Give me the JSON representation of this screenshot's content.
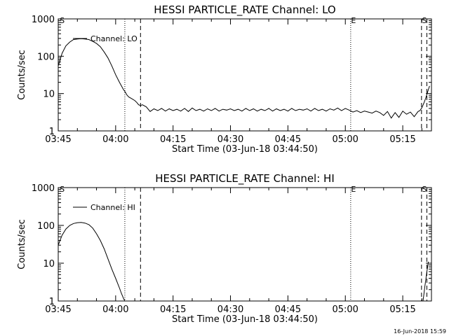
{
  "timestamp": "16-Jun-2018 15:59",
  "chart_data": [
    {
      "type": "line",
      "title": "HESSI PARTICLE_RATE Channel: LO",
      "xlabel": "Start Time (03-Jun-18 03:44:50)",
      "ylabel": "Counts/sec",
      "yscale": "log",
      "xlim_minutes": [
        0,
        97.5
      ],
      "ylim": [
        1,
        1000
      ],
      "x_ticks": [
        "03:45",
        "04:00",
        "04:15",
        "04:30",
        "04:45",
        "05:00",
        "05:15"
      ],
      "x_tick_minutes": [
        0,
        15,
        30,
        45,
        60,
        75,
        90
      ],
      "y_ticks": [
        "1",
        "10",
        "100",
        "1000"
      ],
      "y_tick_values": [
        1,
        10,
        100,
        1000
      ],
      "legend": {
        "label": "Channel: LO",
        "position": "top-left"
      },
      "markers": [
        {
          "minute": 0.3,
          "style": "none",
          "label": "S"
        },
        {
          "minute": 17.4,
          "style": "dotted",
          "label": ""
        },
        {
          "minute": 21.5,
          "style": "dashed",
          "label": ""
        },
        {
          "minute": 76.4,
          "style": "dotted",
          "label": "E"
        },
        {
          "minute": 94.9,
          "style": "dashed",
          "label": "S"
        },
        {
          "minute": 96.3,
          "style": "dashed",
          "label": ""
        }
      ],
      "series": [
        {
          "x": [
            0,
            1,
            2,
            3,
            4,
            5,
            6,
            7,
            8,
            9,
            10,
            11,
            12,
            13,
            14,
            15,
            16,
            17,
            17.5,
            18,
            18.5,
            19,
            20,
            20.5,
            21,
            21.5,
            22,
            23,
            24,
            25,
            26,
            27,
            28,
            29,
            30,
            31,
            32,
            33,
            34,
            35,
            36,
            37,
            38,
            39,
            40,
            41,
            42,
            43,
            44,
            45,
            46,
            47,
            48,
            49,
            50,
            51,
            52,
            53,
            54,
            55,
            56,
            57,
            58,
            59,
            60,
            61,
            62,
            63,
            64,
            65,
            66,
            67,
            68,
            69,
            70,
            71,
            72,
            73,
            74,
            75,
            76,
            77,
            78,
            79,
            80,
            81,
            82,
            83,
            84,
            85,
            86,
            87,
            88,
            89,
            90,
            91,
            92,
            93,
            94,
            94.5,
            95,
            95.5,
            96,
            96.5,
            97
          ],
          "y": [
            55,
            120,
            190,
            240,
            280,
            290,
            295,
            290,
            280,
            250,
            220,
            180,
            130,
            90,
            55,
            32,
            20,
            13,
            11,
            9,
            8,
            7.5,
            6.5,
            5.8,
            5,
            4.8,
            5,
            4.4,
            3.3,
            3.9,
            3.5,
            4,
            3.4,
            3.9,
            3.5,
            3.8,
            3.4,
            4,
            3.3,
            4.1,
            3.5,
            3.8,
            3.4,
            3.9,
            3.5,
            4,
            3.4,
            3.8,
            3.6,
            3.9,
            3.5,
            3.8,
            3.4,
            4,
            3.5,
            3.9,
            3.4,
            3.8,
            3.5,
            4,
            3.4,
            3.9,
            3.5,
            3.8,
            3.4,
            4,
            3.5,
            3.8,
            3.6,
            3.9,
            3.4,
            4,
            3.5,
            3.8,
            3.4,
            3.9,
            3.6,
            4.1,
            3.5,
            4,
            3.6,
            3.2,
            3.5,
            3.1,
            3.4,
            3.2,
            3.0,
            3.4,
            3.1,
            2.6,
            3.3,
            2.2,
            3.1,
            2.3,
            3.4,
            2.8,
            3.2,
            2.4,
            3.3,
            3.5,
            4.2,
            5.5,
            7.5,
            11,
            16
          ]
        }
      ]
    },
    {
      "type": "line",
      "title": "HESSI PARTICLE_RATE Channel: HI",
      "xlabel": "Start Time (03-Jun-18 03:44:50)",
      "ylabel": "Counts/sec",
      "yscale": "log",
      "xlim_minutes": [
        0,
        97.5
      ],
      "ylim": [
        1,
        1000
      ],
      "x_ticks": [
        "03:45",
        "04:00",
        "04:15",
        "04:30",
        "04:45",
        "05:00",
        "05:15"
      ],
      "x_tick_minutes": [
        0,
        15,
        30,
        45,
        60,
        75,
        90
      ],
      "y_ticks": [
        "1",
        "10",
        "100",
        "1000"
      ],
      "y_tick_values": [
        1,
        10,
        100,
        1000
      ],
      "legend": {
        "label": "Channel: HI",
        "position": "top-left"
      },
      "markers": [
        {
          "minute": 0.3,
          "style": "none",
          "label": "S"
        },
        {
          "minute": 17.4,
          "style": "dotted",
          "label": ""
        },
        {
          "minute": 21.5,
          "style": "dashed",
          "label": ""
        },
        {
          "minute": 76.4,
          "style": "dotted",
          "label": "E"
        },
        {
          "minute": 94.9,
          "style": "dashed",
          "label": "S"
        },
        {
          "minute": 96.3,
          "style": "dashed",
          "label": ""
        }
      ],
      "series": [
        {
          "x": [
            0,
            1,
            2,
            3,
            4,
            5,
            6,
            7,
            8,
            9,
            10,
            11,
            12,
            13,
            14,
            15,
            16,
            16.5,
            17,
            17.4,
            95.3,
            95.8,
            96.3,
            96.7
          ],
          "y": [
            30,
            55,
            80,
            100,
            112,
            118,
            120,
            115,
            105,
            85,
            60,
            40,
            24,
            13,
            7,
            4,
            2.2,
            1.6,
            1.2,
            1,
            1,
            2.5,
            6,
            11
          ]
        }
      ]
    }
  ]
}
